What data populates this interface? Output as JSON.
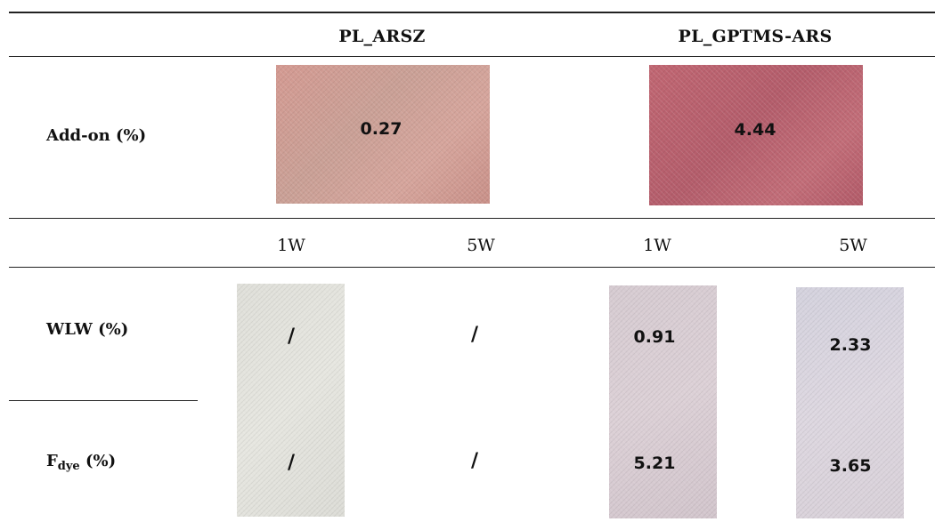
{
  "header": {
    "col1": "PL_ARSZ",
    "col2": "PL_GPTMS-ARS"
  },
  "rows": {
    "addon_label": "Add-on (%)",
    "wlw_label": "WLW (%)",
    "fdye_label_main": "F",
    "fdye_label_sub": "dye",
    "fdye_label_suffix": " (%)"
  },
  "addon": {
    "arsz": "0.27",
    "gptms": "4.44"
  },
  "weeks": [
    "1W",
    "5W",
    "1W",
    "5W"
  ],
  "wlw": [
    "/",
    "/",
    "0.91",
    "2.33"
  ],
  "fdye": [
    "/",
    "/",
    "5.21",
    "3.65"
  ],
  "colors": {
    "swatch_arsz": "#d49a92",
    "swatch_gptms": "#b45d6b",
    "swatch_arsz_washed": "#e2e2dc",
    "swatch_gptms_1w": "#d8ccd2",
    "swatch_gptms_5w": "#d9d3dd"
  }
}
